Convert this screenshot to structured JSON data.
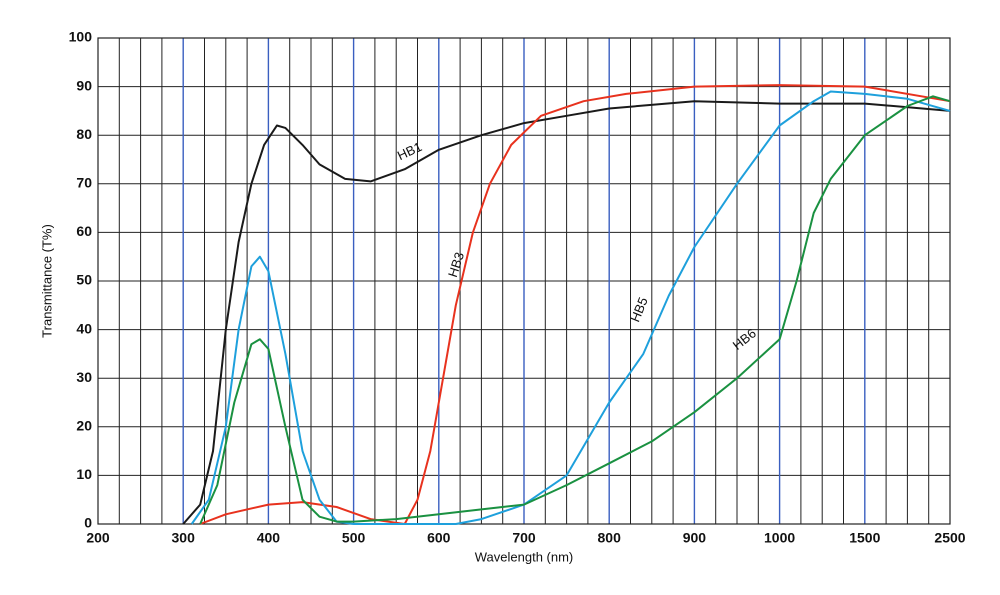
{
  "chart_data": {
    "type": "line",
    "xlabel": "Wavelength (nm)",
    "ylabel": "Transmittance (T%)",
    "xlim": [
      200,
      2500
    ],
    "ylim": [
      0,
      100
    ],
    "xticks": [
      200,
      300,
      400,
      500,
      600,
      700,
      800,
      900,
      1000,
      1500,
      2500
    ],
    "yticks": [
      0,
      10,
      20,
      30,
      40,
      50,
      60,
      70,
      80,
      90,
      100
    ],
    "grid": true,
    "series": [
      {
        "name": "HB1",
        "color": "#1a1a1a",
        "x": [
          300,
          320,
          335,
          350,
          365,
          380,
          395,
          410,
          420,
          440,
          460,
          490,
          520,
          560,
          600,
          650,
          700,
          750,
          800,
          900,
          1000,
          1500,
          2500
        ],
        "values": [
          0,
          4,
          15,
          40,
          58,
          70,
          78,
          82,
          81.5,
          78,
          74,
          71,
          70.5,
          73,
          77,
          80,
          82.5,
          84,
          85.5,
          87,
          86.5,
          86.5,
          85
        ]
      },
      {
        "name": "HB3",
        "color": "#e8321e",
        "x": [
          320,
          350,
          400,
          440,
          480,
          520,
          560,
          575,
          590,
          600,
          620,
          640,
          660,
          685,
          720,
          770,
          820,
          900,
          1000,
          1500,
          2500
        ],
        "values": [
          0,
          2,
          4,
          4.5,
          3.5,
          1,
          0,
          5,
          15,
          25,
          45,
          60,
          70,
          78,
          84,
          87,
          88.5,
          90,
          90.3,
          90,
          87
        ]
      },
      {
        "name": "HB5",
        "color": "#1ea0dc",
        "x": [
          310,
          330,
          350,
          365,
          380,
          390,
          400,
          420,
          440,
          460,
          480,
          500,
          620,
          650,
          700,
          750,
          800,
          840,
          870,
          900,
          950,
          1000,
          1200,
          1300,
          1500,
          2000,
          2500
        ],
        "values": [
          0,
          5,
          20,
          40,
          53,
          55,
          52,
          35,
          15,
          5,
          0.5,
          0,
          0,
          1,
          4,
          10,
          25,
          35,
          47,
          57,
          70,
          82,
          87,
          89,
          88.5,
          87.5,
          85
        ]
      },
      {
        "name": "HB6",
        "color": "#1a9141",
        "x": [
          320,
          340,
          360,
          380,
          390,
          400,
          420,
          440,
          460,
          480,
          500,
          550,
          600,
          650,
          700,
          750,
          800,
          850,
          900,
          950,
          1000,
          1100,
          1200,
          1300,
          1500,
          2000,
          2300,
          2500
        ],
        "values": [
          0,
          8,
          25,
          37,
          38,
          36,
          20,
          5,
          1.5,
          0.5,
          0.5,
          1,
          2,
          3,
          4,
          8,
          12.5,
          17,
          23,
          30,
          38,
          50,
          64,
          71,
          80,
          86,
          88,
          87
        ]
      }
    ]
  }
}
